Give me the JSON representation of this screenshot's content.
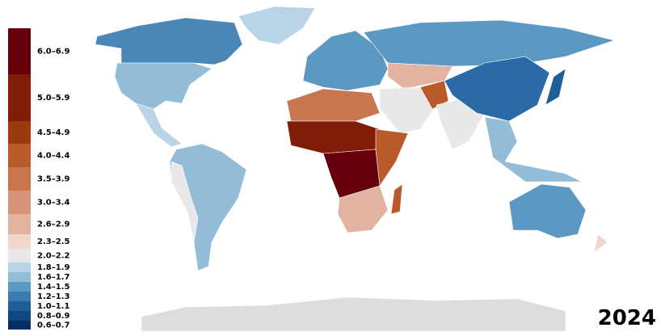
{
  "map": {
    "year": "2024",
    "legend": [
      {
        "label": "6.0–6.9",
        "color": "#67000d"
      },
      {
        "label": "5.0–5.9",
        "color": "#7f1d08"
      },
      {
        "label": "4.5–4.9",
        "color": "#9a3b0e"
      },
      {
        "label": "4.0–4.4",
        "color": "#b85a2a"
      },
      {
        "label": "3.5–3.9",
        "color": "#c97650"
      },
      {
        "label": "3.0–3.4",
        "color": "#d6957a"
      },
      {
        "label": "2.6–2.9",
        "color": "#e2b3a0"
      },
      {
        "label": "2.3–2.5",
        "color": "#f0d6cc"
      },
      {
        "label": "2.0–2.2",
        "color": "#e8e8e8"
      },
      {
        "label": "1.8–1.9",
        "color": "#b8d4e6"
      },
      {
        "label": "1.6–1.7",
        "color": "#93bcd9"
      },
      {
        "label": "1.4–1.5",
        "color": "#5b98c2"
      },
      {
        "label": "1.2–1.3",
        "color": "#3a7aad"
      },
      {
        "label": "1.0–1.1",
        "color": "#1f5f98"
      },
      {
        "label": "0.8–0.9",
        "color": "#0e4781"
      },
      {
        "label": "0.6–0.7",
        "color": "#053061"
      }
    ]
  }
}
